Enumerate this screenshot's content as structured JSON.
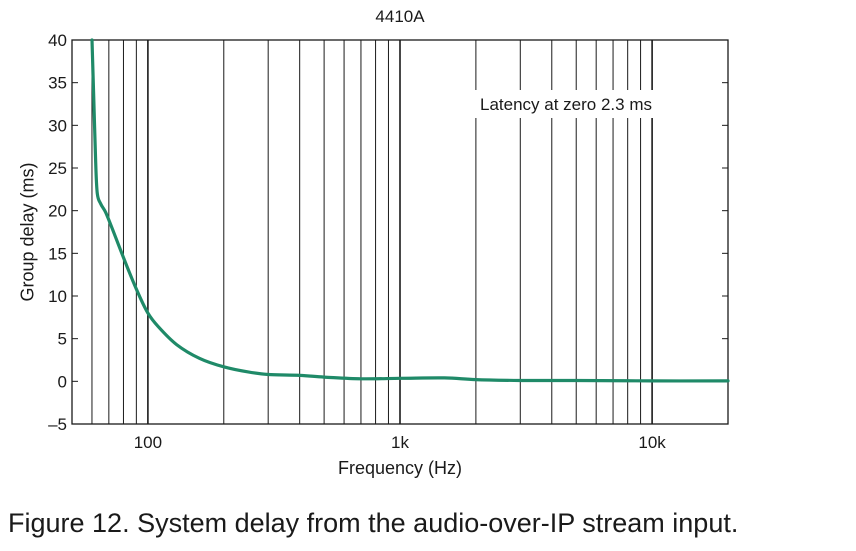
{
  "chart_data": {
    "type": "line",
    "title": "4410A",
    "xlabel": "Frequency (Hz)",
    "ylabel": "Group delay (ms)",
    "x_scale": "log",
    "xlim": [
      50,
      20000
    ],
    "ylim": [
      -5,
      40
    ],
    "grid": true,
    "x_ticks": [
      {
        "value": 100,
        "label": "100"
      },
      {
        "value": 1000,
        "label": "1k"
      },
      {
        "value": 10000,
        "label": "10k"
      }
    ],
    "y_ticks": [
      {
        "value": 40,
        "label": "40"
      },
      {
        "value": 35,
        "label": "35"
      },
      {
        "value": 30,
        "label": "30"
      },
      {
        "value": 25,
        "label": "25"
      },
      {
        "value": 20,
        "label": "20"
      },
      {
        "value": 15,
        "label": "15"
      },
      {
        "value": 10,
        "label": "10"
      },
      {
        "value": 5,
        "label": "5"
      },
      {
        "value": 0,
        "label": "0"
      },
      {
        "value": -5,
        "label": "–5"
      }
    ],
    "annotation": "Latency at zero 2.3 ms",
    "series": [
      {
        "color": "#1f8a68",
        "x": [
          60,
          61,
          62,
          63,
          65,
          68,
          72,
          80,
          90,
          100,
          110,
          130,
          160,
          200,
          250,
          300,
          400,
          500,
          700,
          1000,
          1500,
          2000,
          3000,
          5000,
          10000,
          20000
        ],
        "y": [
          40,
          33,
          26,
          22,
          20.8,
          19.8,
          18,
          14.5,
          10.8,
          8,
          6.4,
          4.3,
          2.7,
          1.7,
          1.1,
          0.8,
          0.7,
          0.5,
          0.3,
          0.35,
          0.4,
          0.2,
          0.1,
          0.1,
          0.05,
          0.05
        ]
      }
    ]
  },
  "caption": "Figure 12. System delay from the audio-over-IP stream input."
}
